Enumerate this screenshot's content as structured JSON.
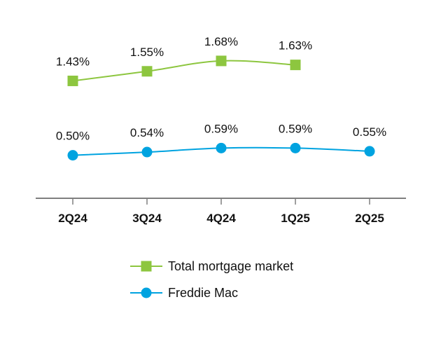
{
  "chart_data": {
    "type": "line",
    "title": "",
    "xlabel": "",
    "ylabel": "",
    "categories": [
      "2Q24",
      "3Q24",
      "4Q24",
      "1Q25",
      "2Q25"
    ],
    "ylim": [
      0,
      2.0
    ],
    "grid": false,
    "legend_position": "bottom",
    "series": [
      {
        "name": "Total mortgage market",
        "values": [
          1.43,
          1.55,
          1.68,
          1.63,
          null
        ],
        "labels": [
          "1.43%",
          "1.55%",
          "1.68%",
          "1.63%",
          ""
        ],
        "color": "#8dc63f",
        "marker": "square"
      },
      {
        "name": "Freddie Mac",
        "values": [
          0.5,
          0.54,
          0.59,
          0.59,
          0.55
        ],
        "labels": [
          "0.50%",
          "0.54%",
          "0.59%",
          "0.59%",
          "0.55%"
        ],
        "color": "#00a3e0",
        "marker": "circle"
      }
    ],
    "axis_color": "#7f7f7f"
  }
}
